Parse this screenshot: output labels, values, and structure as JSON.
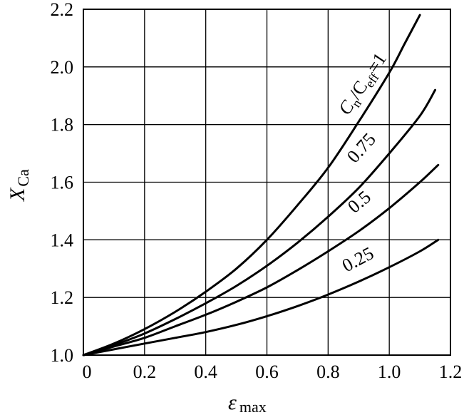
{
  "chart_data": {
    "type": "line",
    "title": "",
    "xlabel": "ε",
    "xlabel_sub": "max",
    "ylabel": "X",
    "ylabel_sub": "Ca",
    "xlim": [
      0,
      1.2
    ],
    "ylim": [
      1.0,
      2.2
    ],
    "x_ticks": [
      "0",
      "0.2",
      "0.4",
      "0.6",
      "0.8",
      "1.0",
      "1.2"
    ],
    "y_ticks": [
      "1.0",
      "1.2",
      "1.4",
      "1.6",
      "1.8",
      "2.0",
      "2.2"
    ],
    "grid": true,
    "series": [
      {
        "name": "Cn/Ceff=1",
        "label_parts": {
          "c1": "C",
          "s1": "n",
          "mid": "/C",
          "s2": "eff",
          "end": "=1"
        },
        "x": [
          0,
          0.1,
          0.2,
          0.3,
          0.4,
          0.5,
          0.6,
          0.7,
          0.8,
          0.9,
          1.0,
          1.05,
          1.1
        ],
        "y": [
          1.0,
          1.04,
          1.09,
          1.15,
          1.22,
          1.3,
          1.4,
          1.52,
          1.65,
          1.81,
          1.98,
          2.08,
          2.18
        ]
      },
      {
        "name": "0.75",
        "x": [
          0,
          0.1,
          0.2,
          0.3,
          0.4,
          0.5,
          0.6,
          0.7,
          0.8,
          0.9,
          1.0,
          1.1,
          1.15
        ],
        "y": [
          1.0,
          1.035,
          1.075,
          1.125,
          1.18,
          1.24,
          1.31,
          1.39,
          1.48,
          1.58,
          1.7,
          1.83,
          1.92
        ]
      },
      {
        "name": "0.5",
        "x": [
          0,
          0.1,
          0.2,
          0.3,
          0.4,
          0.5,
          0.6,
          0.7,
          0.8,
          0.9,
          1.0,
          1.1,
          1.16
        ],
        "y": [
          1.0,
          1.03,
          1.06,
          1.1,
          1.14,
          1.185,
          1.235,
          1.295,
          1.36,
          1.43,
          1.51,
          1.6,
          1.66
        ]
      },
      {
        "name": "0.25",
        "x": [
          0,
          0.1,
          0.2,
          0.3,
          0.4,
          0.5,
          0.6,
          0.7,
          0.8,
          0.9,
          1.0,
          1.1,
          1.16
        ],
        "y": [
          1.0,
          1.02,
          1.04,
          1.06,
          1.08,
          1.105,
          1.135,
          1.17,
          1.21,
          1.255,
          1.305,
          1.36,
          1.4
        ]
      }
    ]
  }
}
